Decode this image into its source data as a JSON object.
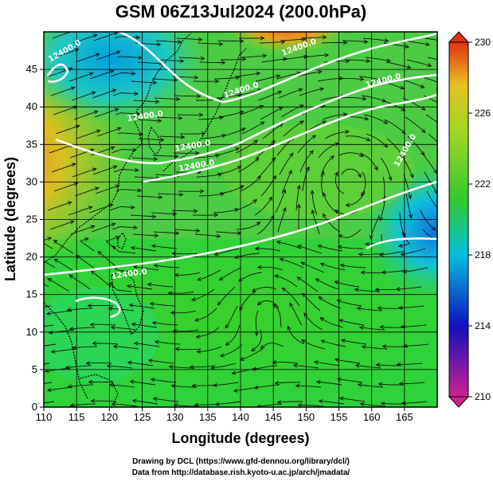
{
  "title": "GSM 06Z13Jul2024 (200.0hPa)",
  "x_axis": {
    "label": "Longitude (degrees)",
    "ticks": [
      110,
      115,
      120,
      125,
      130,
      135,
      140,
      145,
      150,
      155,
      160,
      165
    ],
    "range": [
      110,
      170
    ]
  },
  "y_axis": {
    "label": "Latitude  (degrees)",
    "ticks": [
      0,
      5,
      10,
      15,
      20,
      25,
      30,
      35,
      40,
      45
    ],
    "range": [
      0,
      50
    ]
  },
  "colorbar": {
    "ticks": [
      210,
      214,
      218,
      222,
      226,
      230
    ],
    "range": [
      210,
      230
    ],
    "colors": [
      "#d02090",
      "#1010c0",
      "#00c0e0",
      "#30c830",
      "#a0d820",
      "#e8c020",
      "#e03010"
    ]
  },
  "contour_labels": [
    "12400.0",
    "12400.0",
    "12400.0",
    "12400.0",
    "12400.0",
    "12400.0",
    "12400.0",
    "12400.0",
    "12400.0"
  ],
  "credits": {
    "line1": "Drawing by DCL (https://www.gfd-dennou.org/library/dcl/)",
    "line2": "Data from http://database.rish.kyoto-u.ac.jp/arch/jmadata/"
  }
}
